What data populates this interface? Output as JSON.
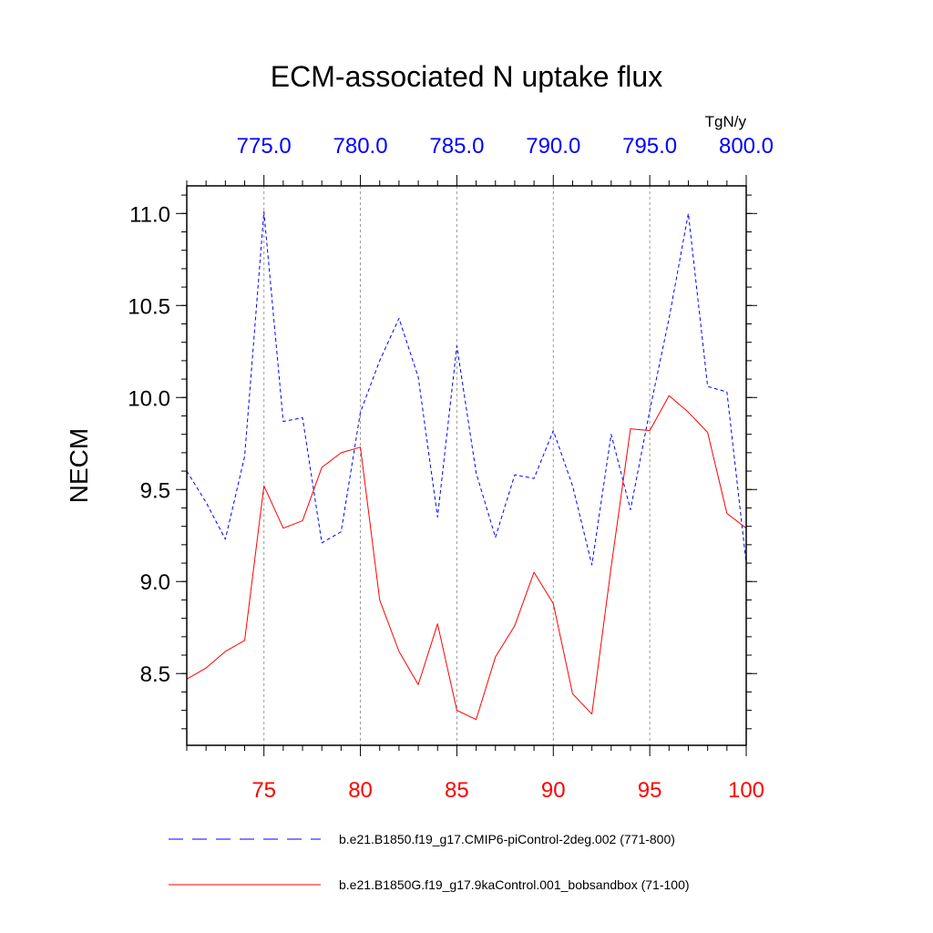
{
  "chart_data": {
    "type": "line",
    "title": "ECM-associated N uptake flux",
    "units": "TgN/y",
    "ylabel": "NECM",
    "xlabel": "",
    "ylim": [
      8.11,
      11.15
    ],
    "yticks": [
      "8.5",
      "9.0",
      "9.5",
      "10.0",
      "10.5",
      "11.0"
    ],
    "bottom_axis": {
      "range": [
        71,
        100
      ],
      "ticks": [
        "75",
        "80",
        "85",
        "90",
        "95",
        "100"
      ],
      "color": "#ff0000"
    },
    "top_axis": {
      "range": [
        771,
        800
      ],
      "ticks": [
        "775.0",
        "780.0",
        "785.0",
        "790.0",
        "795.0",
        "800.0"
      ],
      "color": "#0000ff"
    },
    "grid": "vertical dashed at major x ticks",
    "legend_placement": "bottom",
    "series": [
      {
        "name": "b.e21.B1850.f19_g17.CMIP6-piControl-2deg.002 (771-800)",
        "axis": "top",
        "color": "#0000ff",
        "style": "dashed",
        "x": [
          771,
          772,
          773,
          774,
          775,
          776,
          777,
          778,
          779,
          780,
          781,
          782,
          783,
          784,
          785,
          786,
          787,
          788,
          789,
          790,
          791,
          792,
          793,
          794,
          795,
          796,
          797,
          798,
          799,
          800
        ],
        "values": [
          9.6,
          9.43,
          9.23,
          9.68,
          11.01,
          9.87,
          9.89,
          9.21,
          9.27,
          9.92,
          10.2,
          10.43,
          10.11,
          9.35,
          10.28,
          9.59,
          9.24,
          9.58,
          9.56,
          9.82,
          9.52,
          9.09,
          9.8,
          9.39,
          9.93,
          10.43,
          11.0,
          10.06,
          10.03,
          9.1
        ]
      },
      {
        "name": "b.e21.B1850G.f19_g17.9kaControl.001_bobsandbox (71-100)",
        "axis": "bottom",
        "color": "#ff0000",
        "style": "solid",
        "x": [
          71,
          72,
          73,
          74,
          75,
          76,
          77,
          78,
          79,
          80,
          81,
          82,
          83,
          84,
          85,
          86,
          87,
          88,
          89,
          90,
          91,
          92,
          93,
          94,
          95,
          96,
          97,
          98,
          99,
          100
        ],
        "values": [
          8.47,
          8.53,
          8.62,
          8.68,
          9.52,
          9.29,
          9.33,
          9.62,
          9.7,
          9.73,
          8.9,
          8.62,
          8.44,
          8.77,
          8.3,
          8.25,
          8.59,
          8.76,
          9.05,
          8.88,
          8.39,
          8.28,
          9.08,
          9.83,
          9.82,
          10.01,
          9.92,
          9.81,
          9.37,
          9.29
        ]
      }
    ]
  }
}
